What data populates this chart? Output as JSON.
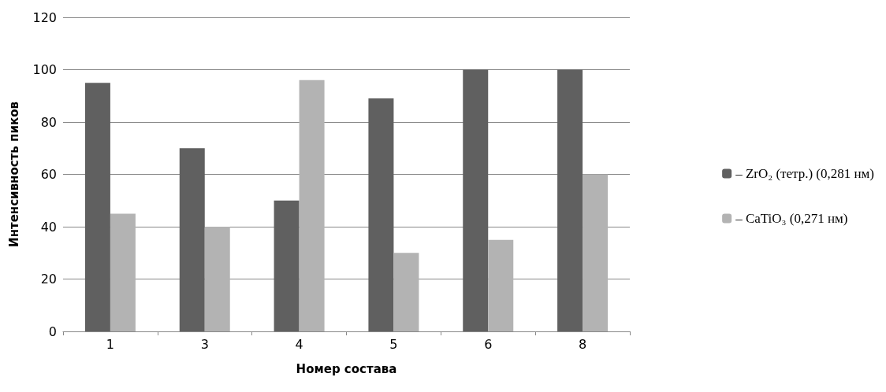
{
  "chart_data": {
    "type": "bar",
    "xlabel": "Номер состава",
    "ylabel": "Интенсивность пиков",
    "categories": [
      "1",
      "3",
      "4",
      "5",
      "6",
      "8"
    ],
    "series": [
      {
        "name": "– ZrO₂ (тетр.) (0,281 нм)",
        "color": "#606060",
        "values": [
          95,
          70,
          50,
          89,
          100,
          100
        ]
      },
      {
        "name": "– CaTiO₃ (0,271 нм)",
        "color": "#b3b3b3",
        "values": [
          45,
          40,
          96,
          30,
          35,
          60
        ]
      }
    ],
    "ylim": [
      0,
      120
    ],
    "yticks": [
      0,
      20,
      40,
      60,
      80,
      100,
      120
    ],
    "grid": "y",
    "legend": "right"
  }
}
